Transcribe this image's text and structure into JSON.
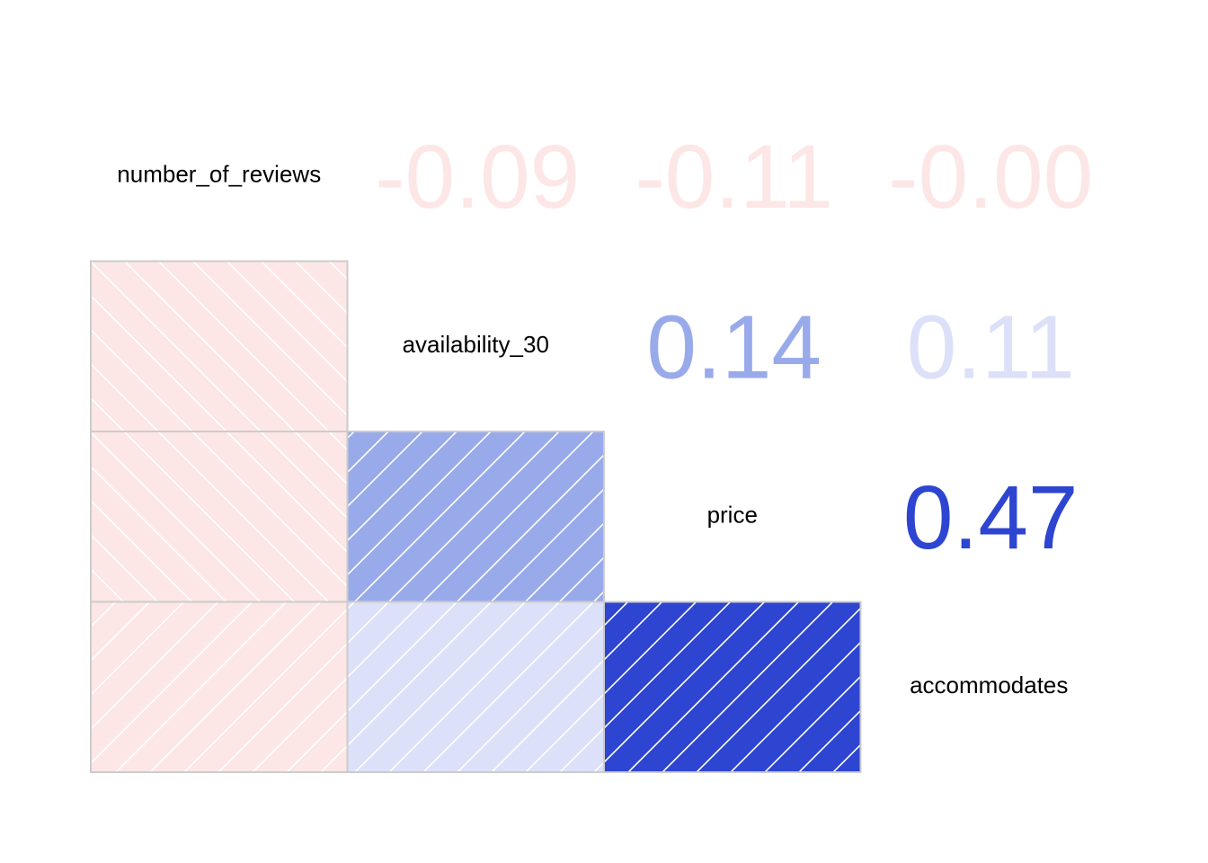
{
  "chart_data": {
    "type": "heatmap",
    "variables": [
      "number_of_reviews",
      "availability_30",
      "price",
      "accommodates"
    ],
    "correlations": [
      {
        "row": "availability_30",
        "col": "number_of_reviews",
        "value": -0.09,
        "label": "-0.09",
        "color": "#fde6e6"
      },
      {
        "row": "price",
        "col": "number_of_reviews",
        "value": -0.11,
        "label": "-0.11",
        "color": "#fde6e6"
      },
      {
        "row": "price",
        "col": "availability_30",
        "value": 0.14,
        "label": "0.14",
        "color": "#99aaeb"
      },
      {
        "row": "accommodates",
        "col": "number_of_reviews",
        "value": -0.0,
        "label": "-0.00",
        "color": "#fde6e6"
      },
      {
        "row": "accommodates",
        "col": "availability_30",
        "value": 0.11,
        "label": "0.11",
        "color": "#dce0f8"
      },
      {
        "row": "accommodates",
        "col": "price",
        "value": 0.47,
        "label": "0.47",
        "color": "#2d45d0"
      }
    ],
    "grid": false,
    "legend": "none"
  },
  "colors": {
    "negative": "#fde6e6",
    "cell_border": "#cccccc",
    "hatch": "#ffffff"
  }
}
